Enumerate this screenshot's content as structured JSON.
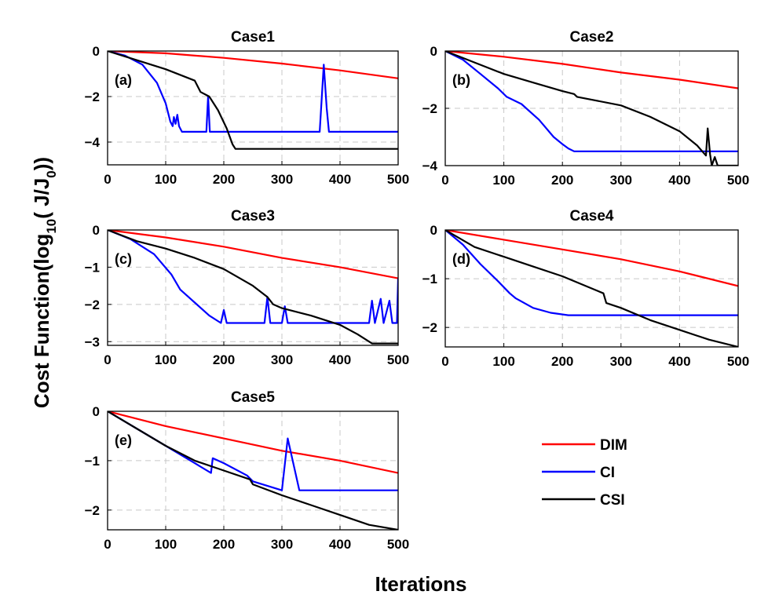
{
  "figure": {
    "xlabel": "Iterations",
    "ylabel_parts": {
      "prefix": "Cost Function(log",
      "subscript": "10",
      "middle": "( J/J",
      "subscript2": "0",
      "suffix": "))"
    }
  },
  "legend": [
    {
      "name": "DIM",
      "color": "#ff0000"
    },
    {
      "name": "CI",
      "color": "#0000ff"
    },
    {
      "name": "CSI",
      "color": "#000000"
    }
  ],
  "chart_data": [
    {
      "type": "line",
      "title": "Case1",
      "tag": "(a)",
      "xlim": [
        0,
        500
      ],
      "ylim": [
        -5,
        0
      ],
      "xticks": [
        0,
        100,
        200,
        300,
        400,
        500
      ],
      "yticks": [
        0,
        -2,
        -4
      ],
      "series": [
        {
          "name": "DIM",
          "color": "#ff0000",
          "points": [
            [
              0,
              0
            ],
            [
              100,
              -0.1
            ],
            [
              200,
              -0.3
            ],
            [
              300,
              -0.55
            ],
            [
              400,
              -0.85
            ],
            [
              500,
              -1.2
            ]
          ]
        },
        {
          "name": "CI",
          "color": "#0000ff",
          "points": [
            [
              0,
              0
            ],
            [
              30,
              -0.2
            ],
            [
              60,
              -0.6
            ],
            [
              85,
              -1.4
            ],
            [
              100,
              -2.3
            ],
            [
              108,
              -3.1
            ],
            [
              112,
              -3.3
            ],
            [
              114,
              -2.9
            ],
            [
              117,
              -3.2
            ],
            [
              120,
              -2.8
            ],
            [
              123,
              -3.3
            ],
            [
              128,
              -3.55
            ],
            [
              170,
              -3.55
            ],
            [
              173,
              -2.0
            ],
            [
              176,
              -3.55
            ],
            [
              365,
              -3.55
            ],
            [
              372,
              -0.6
            ],
            [
              377,
              -2.5
            ],
            [
              381,
              -3.55
            ],
            [
              500,
              -3.55
            ]
          ]
        },
        {
          "name": "CSI",
          "color": "#000000",
          "points": [
            [
              0,
              0
            ],
            [
              50,
              -0.4
            ],
            [
              100,
              -0.8
            ],
            [
              150,
              -1.3
            ],
            [
              160,
              -1.8
            ],
            [
              175,
              -2.0
            ],
            [
              190,
              -2.6
            ],
            [
              205,
              -3.4
            ],
            [
              215,
              -4.1
            ],
            [
              220,
              -4.3
            ],
            [
              500,
              -4.3
            ]
          ]
        }
      ]
    },
    {
      "type": "line",
      "title": "Case2",
      "tag": "(b)",
      "xlim": [
        0,
        500
      ],
      "ylim": [
        -4,
        0
      ],
      "xticks": [
        0,
        100,
        200,
        300,
        400,
        500
      ],
      "yticks": [
        0,
        -2,
        -4
      ],
      "series": [
        {
          "name": "DIM",
          "color": "#ff0000",
          "points": [
            [
              0,
              0
            ],
            [
              100,
              -0.2
            ],
            [
              200,
              -0.45
            ],
            [
              300,
              -0.75
            ],
            [
              400,
              -1.0
            ],
            [
              500,
              -1.3
            ]
          ]
        },
        {
          "name": "CI",
          "color": "#0000ff",
          "points": [
            [
              0,
              0
            ],
            [
              30,
              -0.3
            ],
            [
              60,
              -0.8
            ],
            [
              90,
              -1.3
            ],
            [
              105,
              -1.6
            ],
            [
              130,
              -1.85
            ],
            [
              160,
              -2.4
            ],
            [
              185,
              -3.0
            ],
            [
              200,
              -3.25
            ],
            [
              210,
              -3.4
            ],
            [
              220,
              -3.5
            ],
            [
              500,
              -3.5
            ]
          ]
        },
        {
          "name": "CSI",
          "color": "#000000",
          "points": [
            [
              0,
              0
            ],
            [
              50,
              -0.4
            ],
            [
              100,
              -0.8
            ],
            [
              150,
              -1.1
            ],
            [
              200,
              -1.4
            ],
            [
              220,
              -1.5
            ],
            [
              225,
              -1.6
            ],
            [
              300,
              -1.9
            ],
            [
              350,
              -2.3
            ],
            [
              400,
              -2.8
            ],
            [
              430,
              -3.3
            ],
            [
              445,
              -3.65
            ],
            [
              448,
              -2.7
            ],
            [
              452,
              -3.6
            ],
            [
              455,
              -4.0
            ],
            [
              460,
              -3.7
            ],
            [
              465,
              -4.0
            ],
            [
              500,
              -4.0
            ]
          ]
        }
      ]
    },
    {
      "type": "line",
      "title": "Case3",
      "tag": "(c)",
      "xlim": [
        0,
        500
      ],
      "ylim": [
        -3.1,
        0
      ],
      "xticks": [
        0,
        100,
        200,
        300,
        400,
        500
      ],
      "yticks": [
        0,
        -1,
        -2,
        -3
      ],
      "series": [
        {
          "name": "DIM",
          "color": "#ff0000",
          "points": [
            [
              0,
              0
            ],
            [
              100,
              -0.2
            ],
            [
              200,
              -0.45
            ],
            [
              300,
              -0.75
            ],
            [
              400,
              -1.0
            ],
            [
              500,
              -1.3
            ]
          ]
        },
        {
          "name": "CI",
          "color": "#0000ff",
          "points": [
            [
              0,
              0
            ],
            [
              40,
              -0.25
            ],
            [
              80,
              -0.65
            ],
            [
              110,
              -1.2
            ],
            [
              125,
              -1.6
            ],
            [
              150,
              -1.95
            ],
            [
              175,
              -2.3
            ],
            [
              195,
              -2.5
            ],
            [
              200,
              -2.15
            ],
            [
              205,
              -2.5
            ],
            [
              270,
              -2.5
            ],
            [
              275,
              -1.8
            ],
            [
              280,
              -2.5
            ],
            [
              300,
              -2.5
            ],
            [
              305,
              -2.05
            ],
            [
              310,
              -2.5
            ],
            [
              450,
              -2.5
            ],
            [
              455,
              -1.9
            ],
            [
              460,
              -2.5
            ],
            [
              470,
              -1.85
            ],
            [
              475,
              -2.5
            ],
            [
              485,
              -1.9
            ],
            [
              490,
              -2.5
            ],
            [
              498,
              -2.5
            ],
            [
              500,
              -1.3
            ]
          ]
        },
        {
          "name": "CSI",
          "color": "#000000",
          "points": [
            [
              0,
              0
            ],
            [
              50,
              -0.3
            ],
            [
              100,
              -0.5
            ],
            [
              150,
              -0.75
            ],
            [
              200,
              -1.05
            ],
            [
              250,
              -1.5
            ],
            [
              275,
              -1.8
            ],
            [
              285,
              -2.0
            ],
            [
              300,
              -2.1
            ],
            [
              350,
              -2.3
            ],
            [
              400,
              -2.55
            ],
            [
              430,
              -2.8
            ],
            [
              455,
              -3.05
            ],
            [
              500,
              -3.05
            ]
          ]
        }
      ]
    },
    {
      "type": "line",
      "title": "Case4",
      "tag": "(d)",
      "xlim": [
        0,
        500
      ],
      "ylim": [
        -2.4,
        0
      ],
      "xticks": [
        0,
        100,
        200,
        300,
        400,
        500
      ],
      "yticks": [
        0,
        -1,
        -2
      ],
      "series": [
        {
          "name": "DIM",
          "color": "#ff0000",
          "points": [
            [
              0,
              0
            ],
            [
              100,
              -0.2
            ],
            [
              200,
              -0.4
            ],
            [
              300,
              -0.6
            ],
            [
              400,
              -0.85
            ],
            [
              500,
              -1.15
            ]
          ]
        },
        {
          "name": "CI",
          "color": "#0000ff",
          "points": [
            [
              0,
              0
            ],
            [
              30,
              -0.3
            ],
            [
              60,
              -0.7
            ],
            [
              90,
              -1.05
            ],
            [
              110,
              -1.3
            ],
            [
              120,
              -1.4
            ],
            [
              150,
              -1.6
            ],
            [
              180,
              -1.7
            ],
            [
              210,
              -1.75
            ],
            [
              500,
              -1.75
            ]
          ]
        },
        {
          "name": "CSI",
          "color": "#000000",
          "points": [
            [
              0,
              0
            ],
            [
              50,
              -0.35
            ],
            [
              100,
              -0.55
            ],
            [
              150,
              -0.75
            ],
            [
              200,
              -0.95
            ],
            [
              250,
              -1.2
            ],
            [
              270,
              -1.3
            ],
            [
              275,
              -1.5
            ],
            [
              300,
              -1.6
            ],
            [
              350,
              -1.85
            ],
            [
              400,
              -2.05
            ],
            [
              450,
              -2.25
            ],
            [
              500,
              -2.4
            ]
          ]
        }
      ]
    },
    {
      "type": "line",
      "title": "Case5",
      "tag": "(e)",
      "xlim": [
        0,
        500
      ],
      "ylim": [
        -2.4,
        0
      ],
      "xticks": [
        0,
        100,
        200,
        300,
        400,
        500
      ],
      "yticks": [
        0,
        -1,
        -2
      ],
      "series": [
        {
          "name": "DIM",
          "color": "#ff0000",
          "points": [
            [
              0,
              0
            ],
            [
              100,
              -0.3
            ],
            [
              200,
              -0.55
            ],
            [
              300,
              -0.8
            ],
            [
              400,
              -1.0
            ],
            [
              500,
              -1.25
            ]
          ]
        },
        {
          "name": "CI",
          "color": "#0000ff",
          "points": [
            [
              0,
              0
            ],
            [
              50,
              -0.35
            ],
            [
              100,
              -0.7
            ],
            [
              150,
              -1.05
            ],
            [
              178,
              -1.25
            ],
            [
              181,
              -0.95
            ],
            [
              200,
              -1.05
            ],
            [
              240,
              -1.3
            ],
            [
              250,
              -1.42
            ],
            [
              300,
              -1.6
            ],
            [
              310,
              -0.55
            ],
            [
              330,
              -1.6
            ],
            [
              500,
              -1.6
            ]
          ]
        },
        {
          "name": "CSI",
          "color": "#000000",
          "points": [
            [
              0,
              0
            ],
            [
              50,
              -0.35
            ],
            [
              100,
              -0.7
            ],
            [
              150,
              -1.0
            ],
            [
              200,
              -1.2
            ],
            [
              245,
              -1.38
            ],
            [
              250,
              -1.48
            ],
            [
              300,
              -1.7
            ],
            [
              350,
              -1.9
            ],
            [
              400,
              -2.1
            ],
            [
              450,
              -2.3
            ],
            [
              500,
              -2.4
            ]
          ]
        }
      ]
    }
  ]
}
